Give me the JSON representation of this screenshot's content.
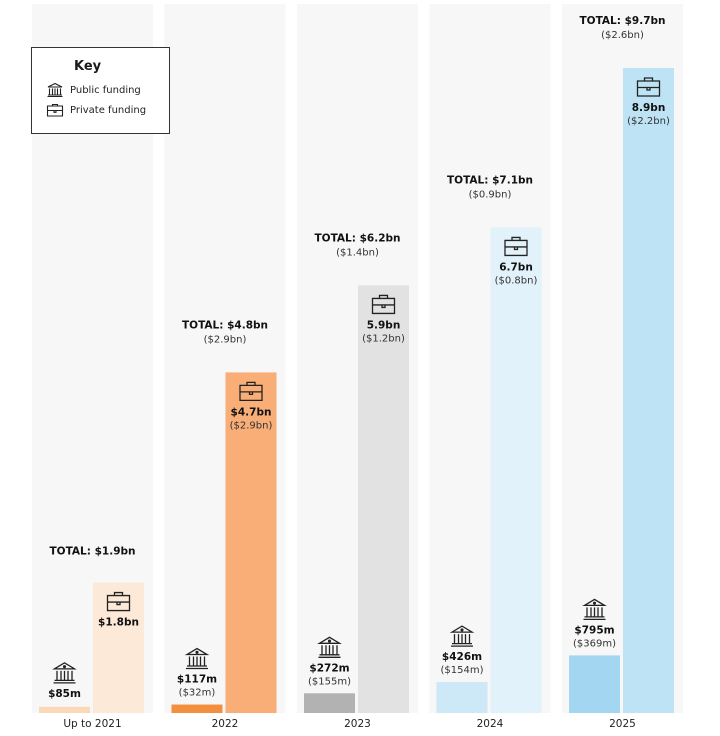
{
  "key": {
    "title": "Key",
    "public_label": "Public funding",
    "private_label": "Private funding",
    "public_icon": "bank-icon",
    "private_icon": "briefcase-icon"
  },
  "chart_data": {
    "type": "bar",
    "categories": [
      "Up to 2021",
      "2022",
      "2023",
      "2024",
      "2025"
    ],
    "series": [
      {
        "name": "Public funding",
        "values": [
          85,
          117,
          272,
          426,
          795
        ],
        "unit": "m"
      },
      {
        "name": "Private funding",
        "values": [
          1800,
          4700,
          5900,
          6700,
          8900
        ],
        "unit": "m"
      }
    ],
    "public_labels": [
      "$85m",
      "$117m",
      "$272m",
      "$426m",
      "$795m"
    ],
    "public_sublabels": [
      "",
      "($32m)",
      "($155m)",
      "($154m)",
      "($369m)"
    ],
    "private_labels": [
      "$1.8bn",
      "$4.7bn",
      "5.9bn",
      "6.7bn",
      "8.9bn"
    ],
    "private_sublabels": [
      "",
      "($2.9bn)",
      "($1.2bn)",
      "($0.8bn)",
      "($2.2bn)"
    ],
    "total_labels": [
      "TOTAL: $1.9bn",
      "TOTAL: $4.8bn",
      "TOTAL: $6.2bn",
      "TOTAL: $7.1bn",
      "TOTAL: $9.7bn"
    ],
    "total_sublabels": [
      "",
      "($2.9bn)",
      "($1.4bn)",
      "($0.9bn)",
      "($2.6bn)"
    ],
    "colors": {
      "panel": "#f7f7f7",
      "public": [
        "#fbd8b8",
        "#f39040",
        "#b2b2b2",
        "#cde8f6",
        "#a3d6f0"
      ],
      "private": [
        "#fde9d8",
        "#f9ae78",
        "#e2e2e2",
        "#e2f2fb",
        "#bde3f5"
      ]
    }
  }
}
